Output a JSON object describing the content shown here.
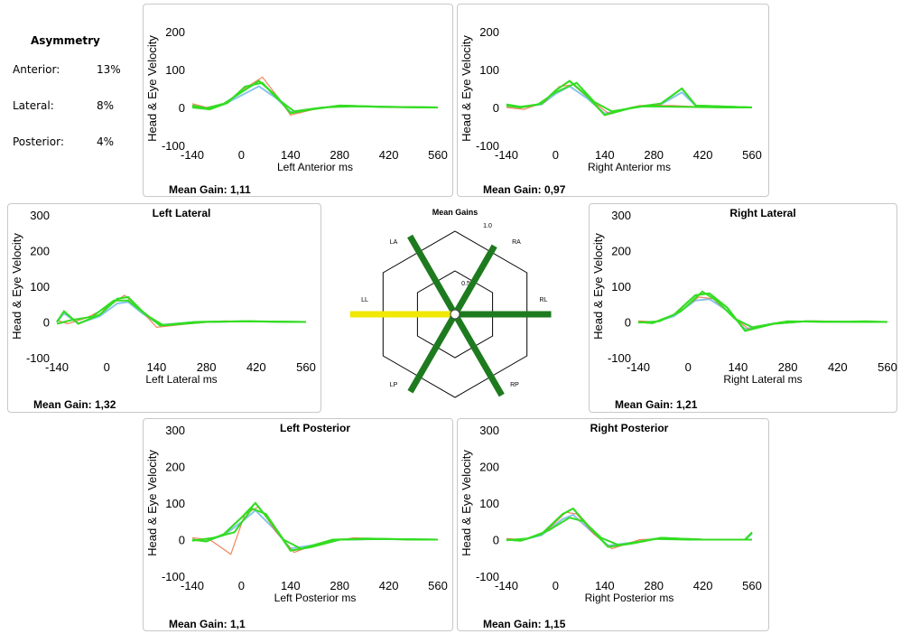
{
  "asymmetry": {
    "title": "Asymmetry",
    "rows": [
      {
        "label": "Anterior:",
        "value": "13%"
      },
      {
        "label": "Lateral:",
        "value": "8%"
      },
      {
        "label": "Posterior:",
        "value": "4%"
      }
    ]
  },
  "colors": {
    "eye": "#33dd22",
    "head": "#88c4ea",
    "abnormal": "#ee6633",
    "gain_good": "#1e7a1e",
    "gain_low": "#f0e800"
  },
  "radar": {
    "title": "Mean Gains",
    "ring_outer_label": "1.0",
    "ring_inner_label": "0.5",
    "axes": [
      {
        "label": "LA",
        "gain": 1.11
      },
      {
        "label": "RA",
        "gain": 0.97
      },
      {
        "label": "LL",
        "gain": 1.32
      },
      {
        "label": "RL",
        "gain": 1.21
      },
      {
        "label": "LP",
        "gain": 1.1
      },
      {
        "label": "RP",
        "gain": 1.15
      }
    ]
  },
  "chart_data": [
    {
      "id": "left-anterior",
      "type": "line",
      "title": "",
      "xlabel": "Left Anterior ms",
      "ylabel": "Head & Eye Velocity",
      "xlim": [
        -140,
        560
      ],
      "ylim": [
        -100,
        200
      ],
      "xticks": [
        "-140",
        "0",
        "140",
        "280",
        "420",
        "560"
      ],
      "yticks": [
        "200",
        "100",
        "0",
        "-100"
      ],
      "mean_gain": "Mean Gain: 1,11",
      "series": [
        {
          "values": [
            [
              -140,
              5
            ],
            [
              -100,
              -2
            ],
            [
              -50,
              10
            ],
            [
              0,
              40
            ],
            [
              50,
              70
            ],
            [
              100,
              30
            ],
            [
              140,
              -15
            ],
            [
              200,
              -5
            ],
            [
              280,
              5
            ],
            [
              400,
              2
            ],
            [
              560,
              0
            ]
          ]
        },
        {
          "values": [
            [
              -140,
              10
            ],
            [
              -100,
              0
            ],
            [
              -50,
              8
            ],
            [
              0,
              45
            ],
            [
              60,
              80
            ],
            [
              110,
              20
            ],
            [
              140,
              -20
            ],
            [
              220,
              -2
            ],
            [
              300,
              5
            ],
            [
              420,
              0
            ],
            [
              560,
              0
            ]
          ]
        },
        {
          "values": [
            [
              -140,
              0
            ],
            [
              -90,
              -5
            ],
            [
              -40,
              12
            ],
            [
              10,
              55
            ],
            [
              60,
              65
            ],
            [
              100,
              25
            ],
            [
              150,
              -10
            ],
            [
              230,
              0
            ],
            [
              320,
              3
            ],
            [
              450,
              1
            ],
            [
              560,
              0
            ]
          ]
        }
      ]
    },
    {
      "id": "right-anterior",
      "type": "line",
      "title": "",
      "xlabel": "Right Anterior ms",
      "ylabel": "Head & Eye Velocity",
      "xlim": [
        -140,
        560
      ],
      "ylim": [
        -100,
        200
      ],
      "xticks": [
        "-140",
        "0",
        "140",
        "280",
        "420",
        "560"
      ],
      "yticks": [
        "200",
        "100",
        "0",
        "-100"
      ],
      "mean_gain": "Mean Gain: 0,97",
      "series": [
        {
          "values": [
            [
              -140,
              5
            ],
            [
              -100,
              0
            ],
            [
              -40,
              10
            ],
            [
              0,
              45
            ],
            [
              40,
              70
            ],
            [
              90,
              30
            ],
            [
              140,
              -20
            ],
            [
              220,
              0
            ],
            [
              300,
              10
            ],
            [
              360,
              50
            ],
            [
              400,
              5
            ],
            [
              560,
              0
            ]
          ]
        },
        {
          "values": [
            [
              -140,
              0
            ],
            [
              -90,
              -5
            ],
            [
              -30,
              15
            ],
            [
              10,
              55
            ],
            [
              50,
              60
            ],
            [
              100,
              20
            ],
            [
              150,
              -15
            ],
            [
              240,
              5
            ],
            [
              330,
              5
            ],
            [
              460,
              0
            ],
            [
              560,
              0
            ]
          ]
        },
        {
          "values": [
            [
              -140,
              8
            ],
            [
              -100,
              2
            ],
            [
              -50,
              8
            ],
            [
              0,
              40
            ],
            [
              60,
              65
            ],
            [
              110,
              15
            ],
            [
              160,
              -10
            ],
            [
              250,
              3
            ],
            [
              350,
              2
            ],
            [
              480,
              0
            ],
            [
              560,
              0
            ]
          ]
        }
      ]
    },
    {
      "id": "left-lateral",
      "type": "line",
      "title": "Left Lateral",
      "xlabel": "Left Lateral ms",
      "ylabel": "Head & Eye Velocity",
      "xlim": [
        -140,
        560
      ],
      "ylim": [
        -100,
        300
      ],
      "xticks": [
        "-140",
        "0",
        "140",
        "280",
        "420",
        "560"
      ],
      "yticks": [
        "300",
        "200",
        "100",
        "0",
        "-100"
      ],
      "mean_gain": "Mean Gain: 1,32",
      "series": [
        {
          "values": [
            [
              -140,
              0
            ],
            [
              -120,
              30
            ],
            [
              -80,
              -5
            ],
            [
              -20,
              20
            ],
            [
              30,
              65
            ],
            [
              60,
              70
            ],
            [
              100,
              30
            ],
            [
              150,
              -10
            ],
            [
              250,
              0
            ],
            [
              400,
              2
            ],
            [
              560,
              0
            ]
          ]
        },
        {
          "values": [
            [
              -140,
              5
            ],
            [
              -110,
              -5
            ],
            [
              -60,
              10
            ],
            [
              0,
              40
            ],
            [
              50,
              75
            ],
            [
              90,
              40
            ],
            [
              140,
              -15
            ],
            [
              230,
              -5
            ],
            [
              330,
              3
            ],
            [
              460,
              0
            ],
            [
              560,
              0
            ]
          ]
        },
        {
          "values": [
            [
              -140,
              -5
            ],
            [
              -100,
              5
            ],
            [
              -40,
              15
            ],
            [
              20,
              60
            ],
            [
              60,
              60
            ],
            [
              110,
              20
            ],
            [
              160,
              -10
            ],
            [
              280,
              0
            ],
            [
              380,
              2
            ],
            [
              500,
              0
            ],
            [
              560,
              0
            ]
          ]
        }
      ]
    },
    {
      "id": "right-lateral",
      "type": "line",
      "title": "Right Lateral",
      "xlabel": "Right Lateral ms",
      "ylabel": "Head & Eye Velocity",
      "xlim": [
        -140,
        560
      ],
      "ylim": [
        -100,
        300
      ],
      "xticks": [
        "-140",
        "0",
        "140",
        "280",
        "420",
        "560"
      ],
      "yticks": [
        "300",
        "200",
        "100",
        "0",
        "-100"
      ],
      "mean_gain": "Mean Gain: 1,21",
      "series": [
        {
          "values": [
            [
              -140,
              0
            ],
            [
              -100,
              -3
            ],
            [
              -40,
              20
            ],
            [
              20,
              75
            ],
            [
              60,
              80
            ],
            [
              110,
              40
            ],
            [
              160,
              -25
            ],
            [
              240,
              -5
            ],
            [
              330,
              2
            ],
            [
              460,
              0
            ],
            [
              560,
              0
            ]
          ]
        },
        {
          "values": [
            [
              -140,
              3
            ],
            [
              -90,
              0
            ],
            [
              -30,
              25
            ],
            [
              30,
              70
            ],
            [
              70,
              65
            ],
            [
              120,
              20
            ],
            [
              170,
              -20
            ],
            [
              260,
              0
            ],
            [
              360,
              3
            ],
            [
              480,
              0
            ],
            [
              560,
              0
            ]
          ]
        },
        {
          "values": [
            [
              -140,
              -2
            ],
            [
              -80,
              2
            ],
            [
              -20,
              30
            ],
            [
              40,
              85
            ],
            [
              80,
              60
            ],
            [
              130,
              10
            ],
            [
              180,
              -15
            ],
            [
              280,
              2
            ],
            [
              380,
              0
            ],
            [
              500,
              2
            ],
            [
              560,
              0
            ]
          ]
        }
      ]
    },
    {
      "id": "left-posterior",
      "type": "line",
      "title": "Left Posterior",
      "xlabel": "Left Posterior ms",
      "ylabel": "Head & Eye Velocity",
      "xlim": [
        -140,
        560
      ],
      "ylim": [
        -100,
        300
      ],
      "xticks": [
        "-140",
        "0",
        "140",
        "280",
        "420",
        "560"
      ],
      "yticks": [
        "300",
        "200",
        "100",
        "0",
        "-100"
      ],
      "mean_gain": "Mean Gain: 1,1",
      "series": [
        {
          "values": [
            [
              -140,
              0
            ],
            [
              -100,
              -5
            ],
            [
              -50,
              15
            ],
            [
              0,
              60
            ],
            [
              40,
              100
            ],
            [
              90,
              40
            ],
            [
              140,
              -30
            ],
            [
              200,
              -20
            ],
            [
              280,
              0
            ],
            [
              400,
              2
            ],
            [
              560,
              0
            ]
          ]
        },
        {
          "values": [
            [
              -140,
              5
            ],
            [
              -90,
              0
            ],
            [
              -30,
              -40
            ],
            [
              10,
              70
            ],
            [
              50,
              90
            ],
            [
              100,
              20
            ],
            [
              150,
              -35
            ],
            [
              220,
              -10
            ],
            [
              320,
              5
            ],
            [
              460,
              0
            ],
            [
              560,
              0
            ]
          ]
        },
        {
          "values": [
            [
              -140,
              -3
            ],
            [
              -80,
              5
            ],
            [
              -20,
              20
            ],
            [
              30,
              85
            ],
            [
              70,
              70
            ],
            [
              120,
              0
            ],
            [
              170,
              -25
            ],
            [
              260,
              0
            ],
            [
              360,
              3
            ],
            [
              480,
              0
            ],
            [
              560,
              0
            ]
          ]
        }
      ]
    },
    {
      "id": "right-posterior",
      "type": "line",
      "title": "Right Posterior",
      "xlabel": "Right Posterior ms",
      "ylabel": "Head & Eye Velocity",
      "xlim": [
        -140,
        560
      ],
      "ylim": [
        -100,
        300
      ],
      "xticks": [
        "-140",
        "0",
        "140",
        "280",
        "420",
        "560"
      ],
      "yticks": [
        "300",
        "200",
        "100",
        "0",
        "-100"
      ],
      "mean_gain": "Mean Gain: 1,15",
      "series": [
        {
          "values": [
            [
              -140,
              0
            ],
            [
              -100,
              -3
            ],
            [
              -40,
              15
            ],
            [
              20,
              70
            ],
            [
              50,
              85
            ],
            [
              100,
              30
            ],
            [
              150,
              -20
            ],
            [
              220,
              -10
            ],
            [
              300,
              5
            ],
            [
              420,
              0
            ],
            [
              540,
              0
            ],
            [
              560,
              20
            ]
          ]
        },
        {
          "values": [
            [
              -140,
              3
            ],
            [
              -90,
              0
            ],
            [
              -30,
              20
            ],
            [
              30,
              75
            ],
            [
              60,
              70
            ],
            [
              110,
              15
            ],
            [
              160,
              -25
            ],
            [
              240,
              0
            ],
            [
              330,
              3
            ],
            [
              460,
              0
            ],
            [
              560,
              0
            ]
          ]
        },
        {
          "values": [
            [
              -140,
              -2
            ],
            [
              -80,
              3
            ],
            [
              -20,
              25
            ],
            [
              40,
              60
            ],
            [
              80,
              50
            ],
            [
              130,
              5
            ],
            [
              180,
              -15
            ],
            [
              280,
              2
            ],
            [
              380,
              0
            ],
            [
              500,
              0
            ],
            [
              560,
              0
            ]
          ]
        }
      ]
    }
  ]
}
